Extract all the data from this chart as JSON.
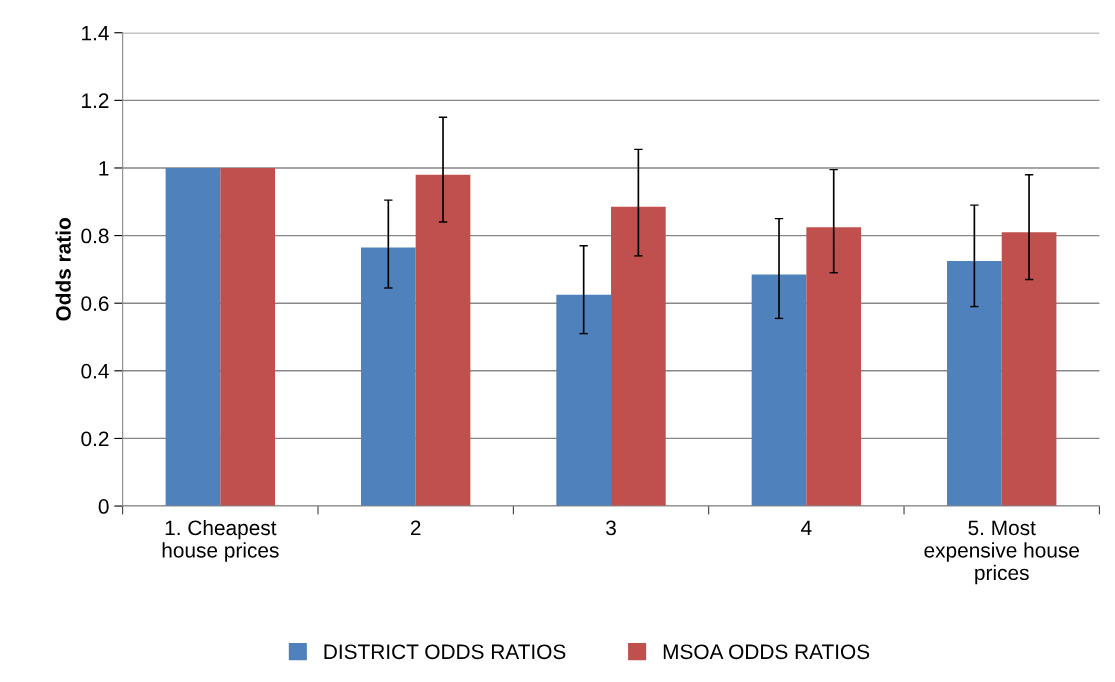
{
  "chart_data": {
    "type": "bar",
    "ylabel": "Odds ratio",
    "categories": [
      "1. Cheapest\nhouse prices",
      "2",
      "3",
      "4",
      "5. Most\nexpensive house\nprices"
    ],
    "series": [
      {
        "name": "DISTRICT ODDS RATIOS",
        "color": "#4f81bd",
        "values": [
          1.0,
          0.765,
          0.625,
          0.685,
          0.725
        ],
        "errors": [
          null,
          [
            0.645,
            0.905
          ],
          [
            0.51,
            0.77
          ],
          [
            0.555,
            0.85
          ],
          [
            0.59,
            0.89
          ]
        ]
      },
      {
        "name": "MSOA ODDS RATIOS",
        "color": "#c0504d",
        "values": [
          1.0,
          0.98,
          0.885,
          0.825,
          0.81
        ],
        "errors": [
          null,
          [
            0.84,
            1.15
          ],
          [
            0.74,
            1.055
          ],
          [
            0.69,
            0.995
          ],
          [
            0.67,
            0.98
          ]
        ]
      }
    ],
    "ylim": [
      0,
      1.4
    ],
    "yticks": [
      0,
      0.2,
      0.4,
      0.6,
      0.8,
      1,
      1.2,
      1.4
    ],
    "grid": "y",
    "legend": "bottom"
  }
}
